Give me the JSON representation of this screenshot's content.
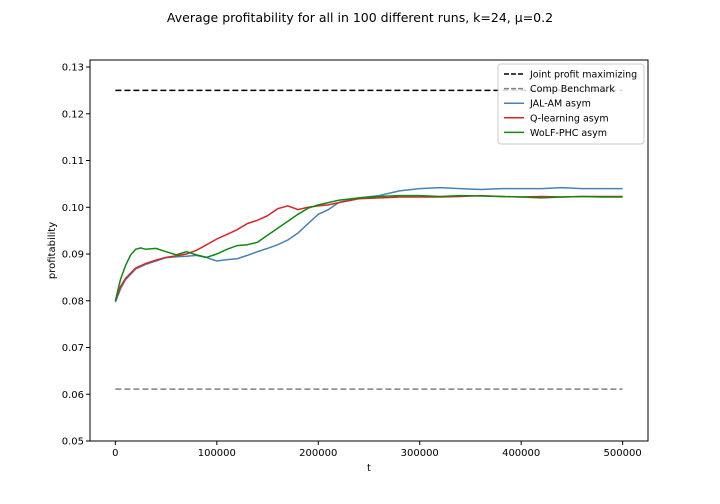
{
  "chart_data": {
    "type": "line",
    "title": "Average profitability for all in 100 different runs, k=24, μ=0.2",
    "xlabel": "t",
    "ylabel": "profitability",
    "xlim": [
      -25000,
      525000
    ],
    "ylim": [
      0.05,
      0.1315
    ],
    "xticks": [
      0,
      100000,
      200000,
      300000,
      400000,
      500000
    ],
    "yticks": [
      0.05,
      0.06,
      0.07,
      0.08,
      0.09,
      0.1,
      0.11,
      0.12,
      0.13
    ],
    "ytick_labels": [
      "0.05",
      "0.06",
      "0.07",
      "0.08",
      "0.09",
      "0.10",
      "0.11",
      "0.12",
      "0.13"
    ],
    "grid": false,
    "legend_position": "top-right",
    "series": [
      {
        "name": "Joint profit maximizing",
        "color": "#000000",
        "style": "dashed",
        "x": [
          0,
          500000
        ],
        "y": [
          0.125,
          0.125
        ]
      },
      {
        "name": "Comp Benchmark",
        "color": "#808080",
        "style": "dashed",
        "x": [
          0,
          500000
        ],
        "y": [
          0.0611,
          0.0611
        ]
      },
      {
        "name": "JAL-AM asym",
        "color": "#4682b4",
        "style": "solid",
        "x": [
          0,
          5000,
          10000,
          20000,
          30000,
          40000,
          50000,
          60000,
          70000,
          80000,
          90000,
          100000,
          110000,
          120000,
          130000,
          140000,
          150000,
          160000,
          170000,
          180000,
          190000,
          200000,
          210000,
          220000,
          240000,
          260000,
          280000,
          300000,
          320000,
          340000,
          360000,
          380000,
          400000,
          420000,
          440000,
          460000,
          480000,
          500000
        ],
        "y": [
          0.0797,
          0.0825,
          0.0845,
          0.0868,
          0.0878,
          0.0885,
          0.0892,
          0.0894,
          0.0895,
          0.0897,
          0.0892,
          0.0885,
          0.0888,
          0.089,
          0.0897,
          0.0905,
          0.0912,
          0.092,
          0.093,
          0.0945,
          0.0965,
          0.0985,
          0.0995,
          0.101,
          0.102,
          0.1025,
          0.1035,
          0.104,
          0.1042,
          0.104,
          0.1038,
          0.104,
          0.104,
          0.104,
          0.1042,
          0.104,
          0.104,
          0.104
        ]
      },
      {
        "name": "Q-learning asym",
        "color": "#d62728",
        "style": "solid",
        "x": [
          0,
          5000,
          10000,
          20000,
          30000,
          40000,
          50000,
          60000,
          70000,
          80000,
          90000,
          100000,
          110000,
          120000,
          130000,
          140000,
          150000,
          160000,
          170000,
          180000,
          190000,
          200000,
          210000,
          220000,
          240000,
          260000,
          280000,
          300000,
          320000,
          340000,
          360000,
          380000,
          400000,
          420000,
          440000,
          460000,
          480000,
          500000
        ],
        "y": [
          0.08,
          0.083,
          0.0848,
          0.087,
          0.088,
          0.0887,
          0.0893,
          0.0896,
          0.09,
          0.0908,
          0.092,
          0.0932,
          0.0942,
          0.0952,
          0.0965,
          0.0972,
          0.0982,
          0.0997,
          0.1003,
          0.0995,
          0.1,
          0.1003,
          0.1005,
          0.101,
          0.1018,
          0.102,
          0.1022,
          0.1022,
          0.1022,
          0.1023,
          0.1025,
          0.1023,
          0.1022,
          0.1023,
          0.1022,
          0.1023,
          0.1023,
          0.1023
        ]
      },
      {
        "name": "WoLF-PHC asym",
        "color": "#118811",
        "style": "solid",
        "x": [
          0,
          5000,
          10000,
          15000,
          20000,
          25000,
          30000,
          40000,
          50000,
          60000,
          70000,
          80000,
          90000,
          100000,
          110000,
          120000,
          130000,
          140000,
          150000,
          160000,
          170000,
          180000,
          190000,
          200000,
          210000,
          220000,
          240000,
          260000,
          280000,
          300000,
          320000,
          340000,
          360000,
          380000,
          400000,
          420000,
          440000,
          460000,
          480000,
          500000
        ],
        "y": [
          0.08,
          0.0845,
          0.0875,
          0.0898,
          0.091,
          0.0913,
          0.091,
          0.0912,
          0.0905,
          0.0898,
          0.0905,
          0.0898,
          0.0893,
          0.09,
          0.091,
          0.0918,
          0.092,
          0.0925,
          0.094,
          0.0955,
          0.097,
          0.0985,
          0.0998,
          0.1005,
          0.101,
          0.1015,
          0.102,
          0.1023,
          0.1025,
          0.1025,
          0.1023,
          0.1025,
          0.1024,
          0.1023,
          0.1022,
          0.102,
          0.1022,
          0.1023,
          0.1022,
          0.1022
        ]
      }
    ]
  }
}
